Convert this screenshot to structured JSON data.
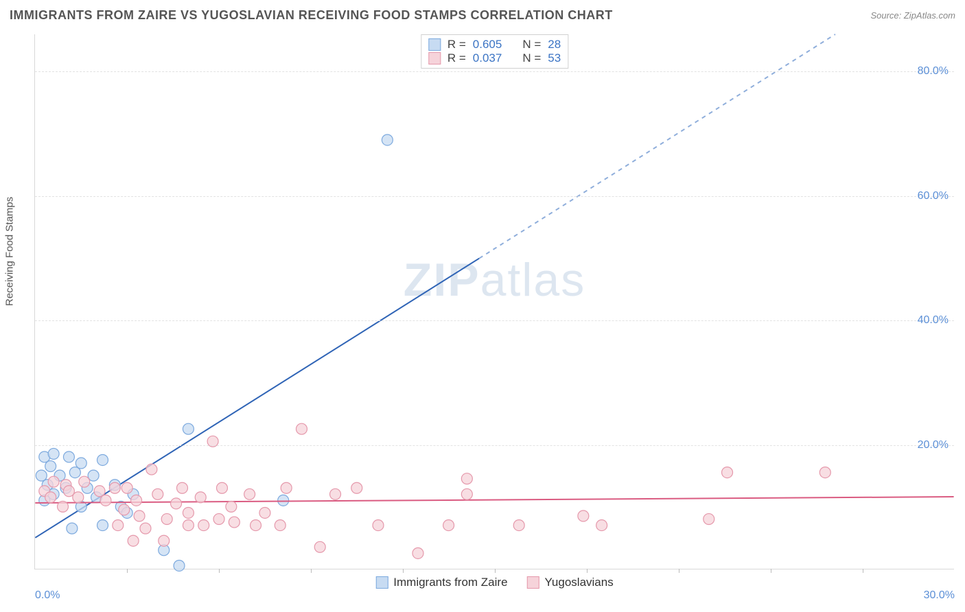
{
  "header": {
    "title": "IMMIGRANTS FROM ZAIRE VS YUGOSLAVIAN RECEIVING FOOD STAMPS CORRELATION CHART",
    "source": "Source: ZipAtlas.com"
  },
  "watermark": {
    "part1": "ZIP",
    "part2": "atlas"
  },
  "ylabel": "Receiving Food Stamps",
  "chart": {
    "type": "scatter",
    "xlim": [
      0,
      30
    ],
    "ylim": [
      0,
      86
    ],
    "xticks_major": [
      0,
      30
    ],
    "xticks_minor": [
      3,
      6,
      9,
      12,
      15,
      18,
      21,
      24,
      27
    ],
    "xtick_labels": [
      "0.0%",
      "30.0%"
    ],
    "yticks": [
      20,
      40,
      60,
      80
    ],
    "ytick_labels": [
      "20.0%",
      "40.0%",
      "60.0%",
      "80.0%"
    ],
    "grid_color": "#e2e2e2",
    "axis_color": "#d8d8d8",
    "background_color": "#ffffff",
    "series": [
      {
        "name": "Immigrants from Zaire",
        "marker_fill": "#c7dbf2",
        "marker_stroke": "#7ca9de",
        "marker_radius": 8,
        "line_color": "#2f64b6",
        "line_width": 2,
        "dash_color": "#8faedb",
        "regression": {
          "slope": 3.1,
          "intercept": 5.0
        },
        "R": "0.605",
        "N": "28",
        "points": [
          {
            "x": 11.5,
            "y": 69.0
          },
          {
            "x": 5.0,
            "y": 22.5
          },
          {
            "x": 0.3,
            "y": 18.0
          },
          {
            "x": 0.6,
            "y": 18.5
          },
          {
            "x": 1.1,
            "y": 18.0
          },
          {
            "x": 0.5,
            "y": 16.5
          },
          {
            "x": 1.5,
            "y": 17.0
          },
          {
            "x": 2.2,
            "y": 17.5
          },
          {
            "x": 0.2,
            "y": 15.0
          },
          {
            "x": 0.8,
            "y": 15.0
          },
          {
            "x": 1.3,
            "y": 15.5
          },
          {
            "x": 1.9,
            "y": 15.0
          },
          {
            "x": 0.4,
            "y": 13.5
          },
          {
            "x": 1.0,
            "y": 13.0
          },
          {
            "x": 1.7,
            "y": 13.0
          },
          {
            "x": 2.6,
            "y": 13.5
          },
          {
            "x": 0.6,
            "y": 12.0
          },
          {
            "x": 2.0,
            "y": 11.5
          },
          {
            "x": 3.2,
            "y": 12.0
          },
          {
            "x": 0.3,
            "y": 11.0
          },
          {
            "x": 1.5,
            "y": 10.0
          },
          {
            "x": 2.8,
            "y": 10.0
          },
          {
            "x": 8.1,
            "y": 11.0
          },
          {
            "x": 2.2,
            "y": 7.0
          },
          {
            "x": 1.2,
            "y": 6.5
          },
          {
            "x": 3.0,
            "y": 9.0
          },
          {
            "x": 4.7,
            "y": 0.5
          },
          {
            "x": 4.2,
            "y": 3.0
          }
        ]
      },
      {
        "name": "Yugoslavians",
        "marker_fill": "#f6d3da",
        "marker_stroke": "#e598ab",
        "marker_radius": 8,
        "line_color": "#da5b81",
        "line_width": 2,
        "regression": {
          "slope": 0.033,
          "intercept": 10.6
        },
        "R": "0.037",
        "N": "53",
        "points": [
          {
            "x": 8.7,
            "y": 22.5
          },
          {
            "x": 5.8,
            "y": 20.5
          },
          {
            "x": 0.6,
            "y": 14.0
          },
          {
            "x": 1.0,
            "y": 13.5
          },
          {
            "x": 1.6,
            "y": 14.0
          },
          {
            "x": 0.3,
            "y": 12.5
          },
          {
            "x": 1.1,
            "y": 12.5
          },
          {
            "x": 2.1,
            "y": 12.5
          },
          {
            "x": 2.6,
            "y": 13.0
          },
          {
            "x": 3.8,
            "y": 16.0
          },
          {
            "x": 0.5,
            "y": 11.5
          },
          {
            "x": 1.4,
            "y": 11.5
          },
          {
            "x": 2.3,
            "y": 11.0
          },
          {
            "x": 2.9,
            "y": 9.5
          },
          {
            "x": 3.3,
            "y": 11.0
          },
          {
            "x": 0.9,
            "y": 10.0
          },
          {
            "x": 14.1,
            "y": 14.5
          },
          {
            "x": 13.5,
            "y": 7.0
          },
          {
            "x": 14.1,
            "y": 12.0
          },
          {
            "x": 12.5,
            "y": 2.5
          },
          {
            "x": 15.8,
            "y": 7.0
          },
          {
            "x": 11.2,
            "y": 7.0
          },
          {
            "x": 10.5,
            "y": 13.0
          },
          {
            "x": 9.8,
            "y": 12.0
          },
          {
            "x": 9.3,
            "y": 3.5
          },
          {
            "x": 8.2,
            "y": 13.0
          },
          {
            "x": 8.0,
            "y": 7.0
          },
          {
            "x": 7.2,
            "y": 7.0
          },
          {
            "x": 7.0,
            "y": 12.0
          },
          {
            "x": 6.5,
            "y": 7.5
          },
          {
            "x": 6.1,
            "y": 13.0
          },
          {
            "x": 6.0,
            "y": 8.0
          },
          {
            "x": 5.5,
            "y": 7.0
          },
          {
            "x": 5.0,
            "y": 9.0
          },
          {
            "x": 5.0,
            "y": 7.0
          },
          {
            "x": 4.8,
            "y": 13.0
          },
          {
            "x": 4.3,
            "y": 8.0
          },
          {
            "x": 4.2,
            "y": 4.5
          },
          {
            "x": 4.0,
            "y": 12.0
          },
          {
            "x": 3.6,
            "y": 6.5
          },
          {
            "x": 3.4,
            "y": 8.5
          },
          {
            "x": 3.2,
            "y": 4.5
          },
          {
            "x": 2.7,
            "y": 7.0
          },
          {
            "x": 18.5,
            "y": 7.0
          },
          {
            "x": 4.6,
            "y": 10.5
          },
          {
            "x": 5.4,
            "y": 11.5
          },
          {
            "x": 6.4,
            "y": 10.0
          },
          {
            "x": 7.5,
            "y": 9.0
          },
          {
            "x": 3.0,
            "y": 13.0
          },
          {
            "x": 22.6,
            "y": 15.5
          },
          {
            "x": 25.8,
            "y": 15.5
          },
          {
            "x": 22.0,
            "y": 8.0
          },
          {
            "x": 17.9,
            "y": 8.5
          }
        ]
      }
    ]
  },
  "legend_top": {
    "rows": [
      {
        "swatch_fill": "#c7dbf2",
        "swatch_stroke": "#7ca9de",
        "r_label": "R =",
        "r_val": "0.605",
        "n_label": "N =",
        "n_val": "28"
      },
      {
        "swatch_fill": "#f6d3da",
        "swatch_stroke": "#e598ab",
        "r_label": "R =",
        "r_val": "0.037",
        "n_label": "N =",
        "n_val": "53"
      }
    ]
  },
  "legend_bottom": {
    "items": [
      {
        "swatch_fill": "#c7dbf2",
        "swatch_stroke": "#7ca9de",
        "label": "Immigrants from Zaire"
      },
      {
        "swatch_fill": "#f6d3da",
        "swatch_stroke": "#e598ab",
        "label": "Yugoslavians"
      }
    ]
  }
}
